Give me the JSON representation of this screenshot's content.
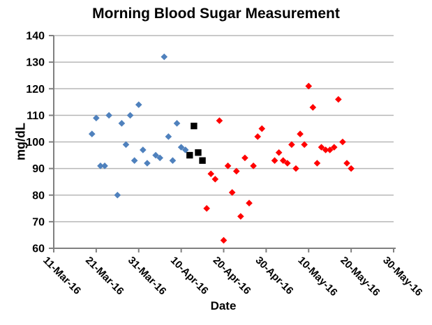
{
  "chart_data": {
    "type": "scatter",
    "title": "Morning Blood Sugar Measurement",
    "xlabel": "Date",
    "ylabel": "mg/dL",
    "grid": "horizontal",
    "legend": "none",
    "x_axis": {
      "start": "11-Mar-16",
      "end": "30-May-16",
      "tick_interval_days": 10,
      "tick_labels": [
        "11-Mar-16",
        "21-Mar-16",
        "31-Mar-16",
        "10-Apr-16",
        "20-Apr-16",
        "30-Apr-16",
        "10-May-16",
        "20-May-16",
        "30-May-16"
      ]
    },
    "y_axis": {
      "min": 60,
      "max": 140,
      "tick_step": 10,
      "tick_labels": [
        "60",
        "70",
        "80",
        "90",
        "100",
        "110",
        "120",
        "130",
        "140"
      ]
    },
    "series": [
      {
        "name": "blue-diamonds",
        "marker": "diamond",
        "color": "#4F81BD",
        "points": [
          [
            "20-Mar-16",
            103
          ],
          [
            "21-Mar-16",
            109
          ],
          [
            "22-Mar-16",
            91
          ],
          [
            "23-Mar-16",
            91
          ],
          [
            "24-Mar-16",
            110
          ],
          [
            "26-Mar-16",
            80
          ],
          [
            "27-Mar-16",
            107
          ],
          [
            "28-Mar-16",
            99
          ],
          [
            "29-Mar-16",
            110
          ],
          [
            "30-Mar-16",
            93
          ],
          [
            "31-Mar-16",
            114
          ],
          [
            "1-Apr-16",
            97
          ],
          [
            "2-Apr-16",
            92
          ],
          [
            "4-Apr-16",
            95
          ],
          [
            "5-Apr-16",
            94
          ],
          [
            "6-Apr-16",
            132
          ],
          [
            "7-Apr-16",
            102
          ],
          [
            "8-Apr-16",
            93
          ],
          [
            "9-Apr-16",
            107
          ],
          [
            "10-Apr-16",
            98
          ],
          [
            "11-Apr-16",
            97
          ]
        ]
      },
      {
        "name": "black-squares",
        "marker": "square",
        "color": "#000000",
        "points": [
          [
            "12-Apr-16",
            95
          ],
          [
            "13-Apr-16",
            106
          ],
          [
            "14-Apr-16",
            96
          ],
          [
            "15-Apr-16",
            93
          ]
        ]
      },
      {
        "name": "red-diamonds",
        "marker": "diamond",
        "color": "#FF0000",
        "points": [
          [
            "16-Apr-16",
            75
          ],
          [
            "17-Apr-16",
            88
          ],
          [
            "18-Apr-16",
            86
          ],
          [
            "19-Apr-16",
            108
          ],
          [
            "20-Apr-16",
            63
          ],
          [
            "21-Apr-16",
            91
          ],
          [
            "22-Apr-16",
            81
          ],
          [
            "23-Apr-16",
            89
          ],
          [
            "24-Apr-16",
            72
          ],
          [
            "25-Apr-16",
            94
          ],
          [
            "26-Apr-16",
            77
          ],
          [
            "27-Apr-16",
            91
          ],
          [
            "28-Apr-16",
            102
          ],
          [
            "29-Apr-16",
            105
          ],
          [
            "2-May-16",
            93
          ],
          [
            "3-May-16",
            96
          ],
          [
            "4-May-16",
            93
          ],
          [
            "5-May-16",
            92
          ],
          [
            "6-May-16",
            99
          ],
          [
            "7-May-16",
            90
          ],
          [
            "8-May-16",
            103
          ],
          [
            "9-May-16",
            99
          ],
          [
            "10-May-16",
            121
          ],
          [
            "11-May-16",
            113
          ],
          [
            "12-May-16",
            92
          ],
          [
            "13-May-16",
            98
          ],
          [
            "14-May-16",
            97
          ],
          [
            "15-May-16",
            97
          ],
          [
            "16-May-16",
            98
          ],
          [
            "17-May-16",
            116
          ],
          [
            "18-May-16",
            100
          ],
          [
            "19-May-16",
            92
          ],
          [
            "20-May-16",
            90
          ]
        ]
      }
    ]
  },
  "style": {
    "background": "#FFFFFF",
    "gridline_color": "#B7B7B7",
    "axis_color": "#808080",
    "text_color": "#000000"
  }
}
